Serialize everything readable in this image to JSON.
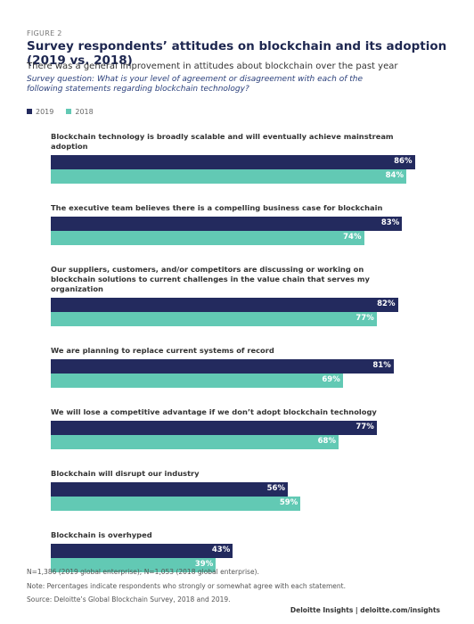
{
  "chart_data": {
    "type": "bar",
    "orientation": "horizontal",
    "figure_label": "FIGURE 2",
    "title": "Survey respondents’ attitudes on blockchain and its adoption (2019 vs. 2018)",
    "subtitle": "There was a general improvement in attitudes about blockchain over the past year",
    "question": "Survey question: What is your level of agreement or disagreement with each of the following statements regarding blockchain technology?",
    "categories": [
      "Blockchain technology is broadly scalable and will eventually achieve mainstream adoption",
      "The executive team believes there is a compelling business case for blockchain",
      "Our suppliers, customers, and/or competitors are discussing or working on blockchain solutions to current challenges in the value chain that serves my organization",
      "We are planning to replace current systems of record",
      "We will lose a competitive advantage if we don’t adopt blockchain technology",
      "Blockchain will disrupt our industry",
      "Blockchain is overhyped"
    ],
    "series": [
      {
        "name": "2019",
        "color": "#232a5e",
        "values": [
          86,
          83,
          82,
          81,
          77,
          56,
          43
        ],
        "value_labels": [
          "86%",
          "83%",
          "82%",
          "81%",
          "77%",
          "56%",
          "43%"
        ]
      },
      {
        "name": "2018",
        "color": "#62c9b4",
        "values": [
          84,
          74,
          77,
          69,
          68,
          59,
          39
        ],
        "value_labels": [
          "84%",
          "74%",
          "77%",
          "69%",
          "68%",
          "59%",
          "39%"
        ]
      }
    ],
    "legend": "top-left",
    "notes": [
      "N=1,386 (2019 global enterprise); N=1,053 (2018 global enterprise).",
      "Note: Percentages indicate respondents who strongly or somewhat agree with each statement.",
      "Source: Deloitte’s Global Blockchain Survey, 2018 and 2019."
    ],
    "credit": "Deloitte Insights | deloitte.com/insights"
  }
}
